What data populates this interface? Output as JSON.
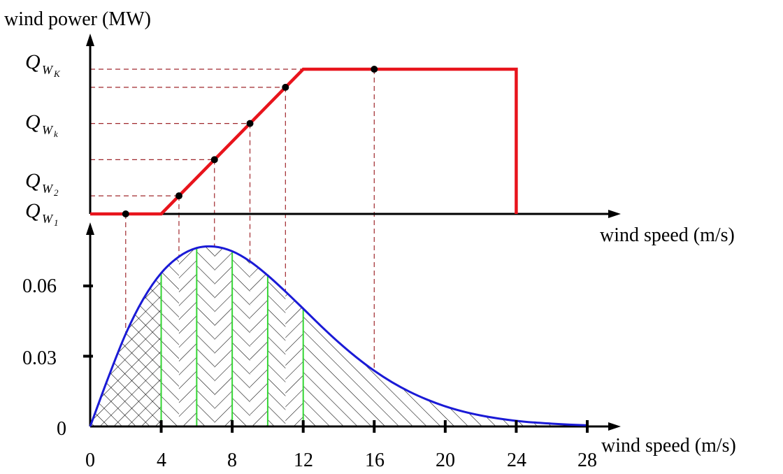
{
  "top_chart": {
    "ylabel": "wind power (MW)",
    "xlabel": "wind speed (m/s)",
    "y_tick_labels": [
      {
        "base": "Q",
        "sub": "W",
        "subsub": "K"
      },
      {
        "base": "Q",
        "sub": "W",
        "subsub": "k"
      },
      {
        "base": "Q",
        "sub": "W",
        "subsub": "2"
      },
      {
        "base": "Q",
        "sub": "W",
        "subsub": "1"
      }
    ]
  },
  "bottom_chart": {
    "xlabel": "wind speed (m/s)",
    "y_tick_labels": [
      "0.06",
      "0.03",
      "0"
    ],
    "x_tick_labels": [
      "0",
      "4",
      "8",
      "12",
      "16",
      "20",
      "24",
      "28"
    ]
  },
  "chart_data": [
    {
      "type": "line",
      "xlabel": "wind speed (m/s)",
      "ylabel": "wind power (MW)",
      "series": [
        {
          "x": [
            0,
            4,
            12,
            24,
            24
          ],
          "y": [
            0,
            0,
            1,
            1,
            0
          ]
        }
      ],
      "points": [
        {
          "x": 2,
          "y": 0
        },
        {
          "x": 5,
          "y": 0.125
        },
        {
          "x": 7,
          "y": 0.375
        },
        {
          "x": 9,
          "y": 0.625
        },
        {
          "x": 11,
          "y": 0.875
        },
        {
          "x": 16,
          "y": 1
        }
      ],
      "colors": {
        "curve": "#e8141c",
        "points": "#000000",
        "guides": "#a0282d"
      }
    },
    {
      "type": "area",
      "xlabel": "wind speed (m/s)",
      "ylim": [
        0,
        0.09
      ],
      "xlim": [
        0,
        28
      ],
      "series": [
        {
          "x": [
            0,
            1,
            2,
            3,
            4,
            5,
            6,
            7,
            8,
            9,
            10,
            11,
            12,
            13,
            14,
            15,
            16,
            17,
            18,
            19,
            20,
            21,
            22,
            23,
            24,
            25,
            26,
            27,
            28
          ],
          "y": [
            0,
            0.0205,
            0.0395,
            0.0545,
            0.0655,
            0.0725,
            0.0762,
            0.0768,
            0.0748,
            0.0705,
            0.0645,
            0.0576,
            0.0503,
            0.0429,
            0.0359,
            0.0295,
            0.0238,
            0.0189,
            0.0148,
            0.0114,
            0.0086,
            0.0064,
            0.0047,
            0.0034,
            0.0024,
            0.0017,
            0.0012,
            0.0008,
            0.0005
          ]
        }
      ],
      "green_bin_edges": [
        4,
        6,
        8,
        10,
        12
      ],
      "colors": {
        "curve": "#1a1ad6",
        "bin_edges": "#35d635",
        "hatch": "#000000"
      }
    }
  ]
}
